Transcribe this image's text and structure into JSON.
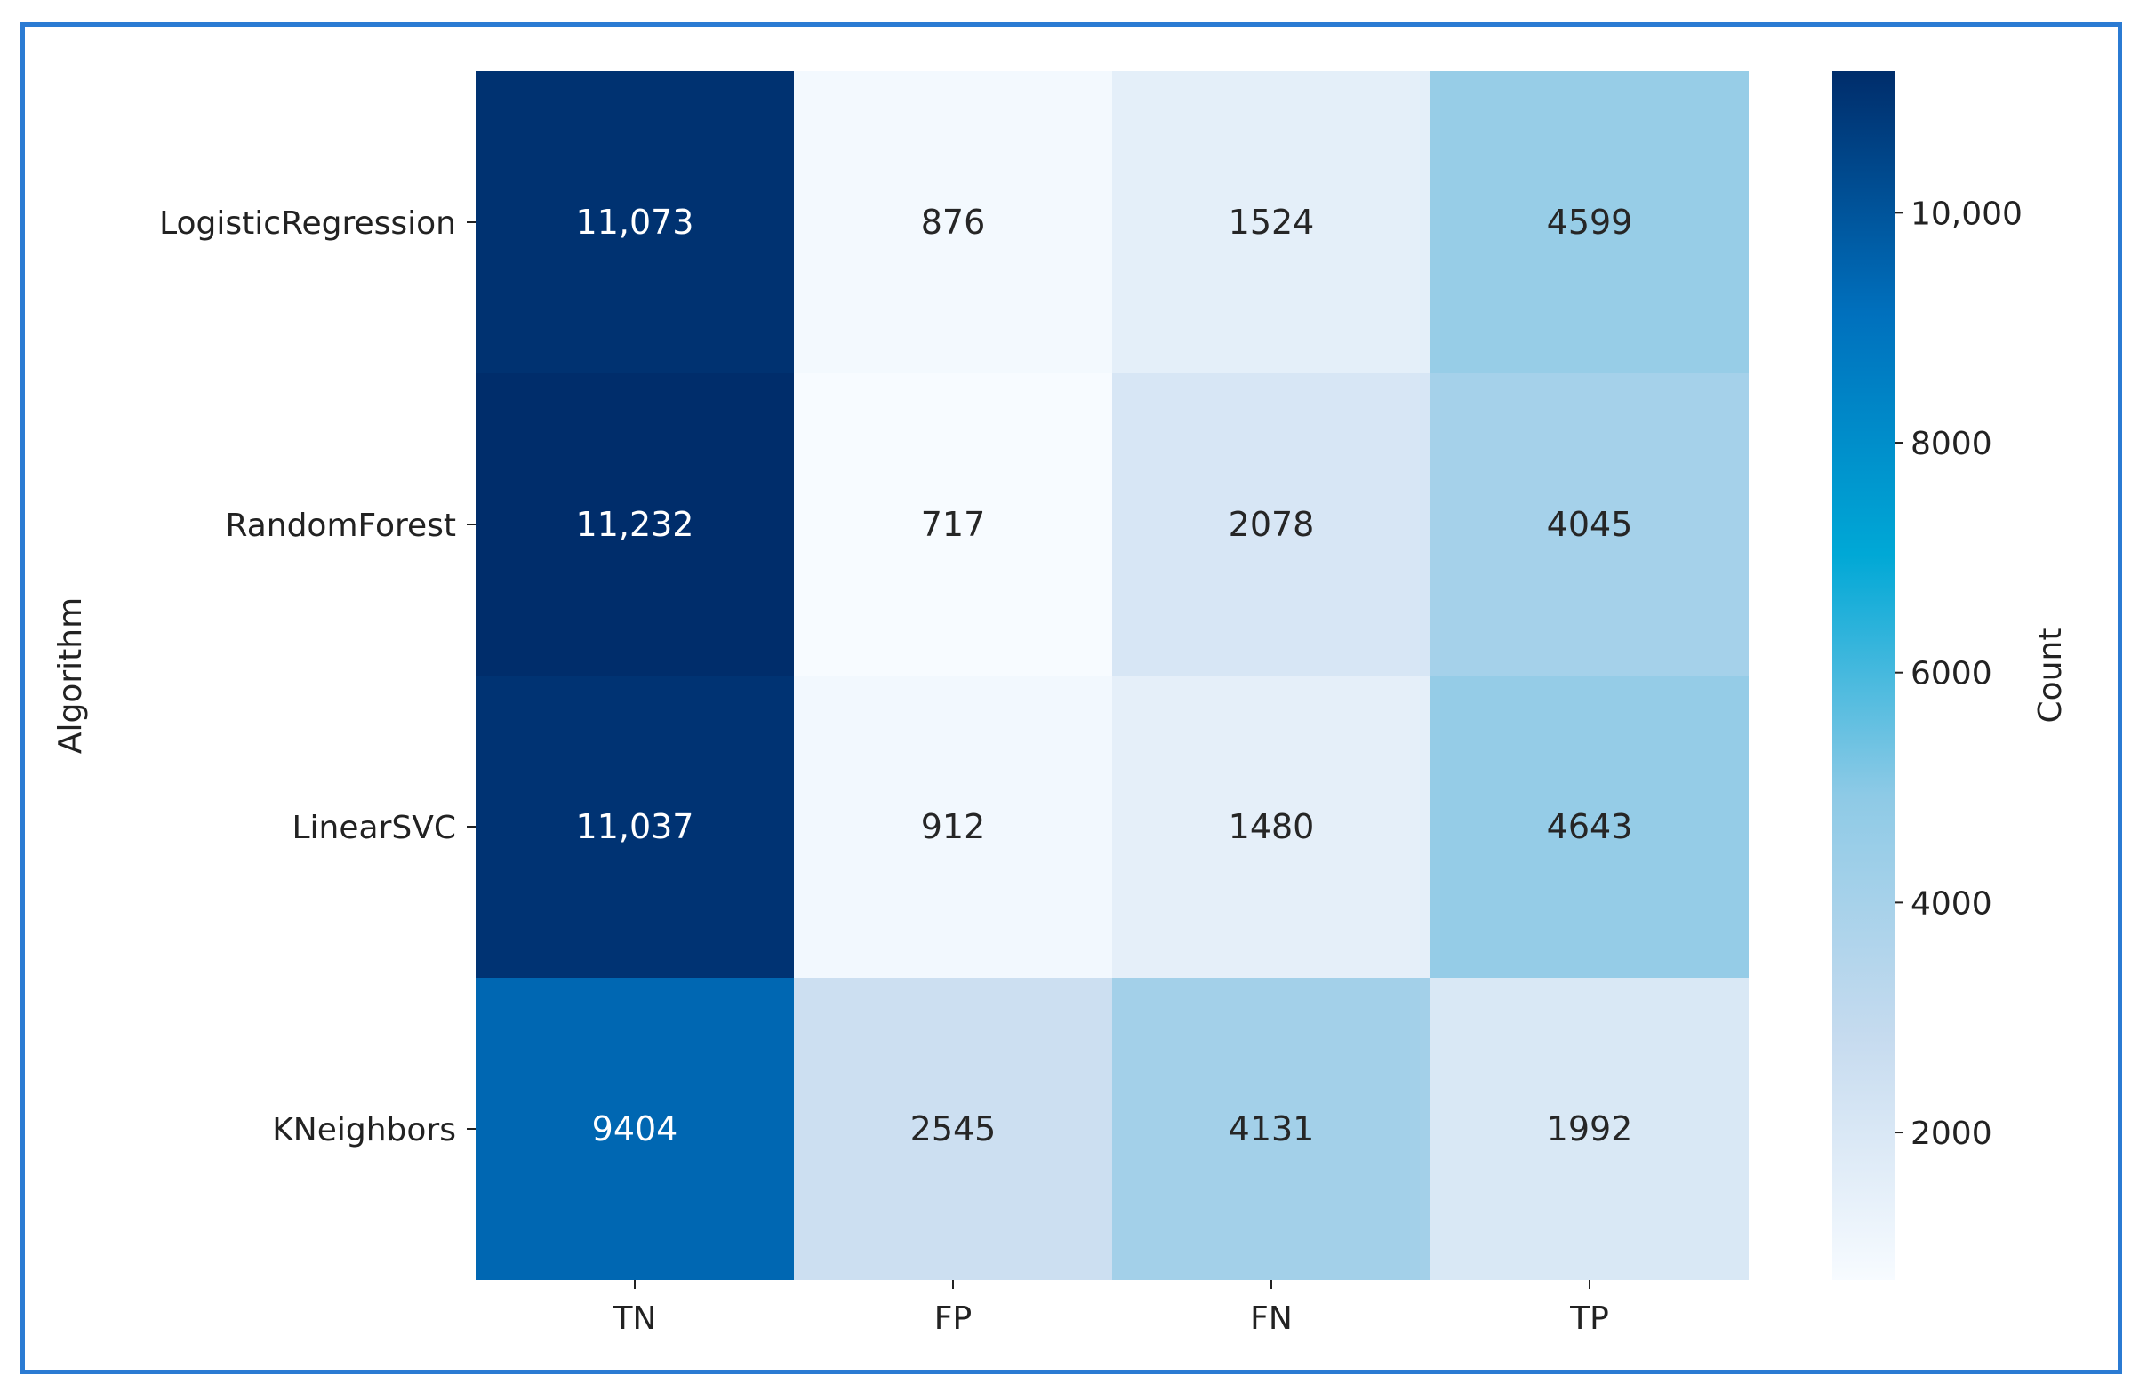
{
  "chart_data": {
    "type": "heatmap",
    "title": "",
    "xlabel": "",
    "ylabel": "Algorithm",
    "colorbar_label": "Count",
    "x_categories": [
      "TN",
      "FP",
      "FN",
      "TP"
    ],
    "y_categories": [
      "LogisticRegression",
      "RandomForest",
      "LinearSVC",
      "KNeighbors"
    ],
    "values": [
      [
        11073,
        876,
        1524,
        4599
      ],
      [
        11232,
        717,
        2078,
        4045
      ],
      [
        11037,
        912,
        1480,
        4643
      ],
      [
        9404,
        2545,
        4131,
        1992
      ]
    ],
    "cell_labels": [
      [
        "11,073",
        "876",
        "1524",
        "4599"
      ],
      [
        "11,232",
        "717",
        "2078",
        "4045"
      ],
      [
        "11,037",
        "912",
        "1480",
        "4643"
      ],
      [
        "9404",
        "2545",
        "4131",
        "1992"
      ]
    ],
    "colorbar_range": [
      717,
      11232
    ],
    "colorbar_ticks": [
      {
        "value": 2000,
        "label": "2000"
      },
      {
        "value": 4000,
        "label": "4000"
      },
      {
        "value": 6000,
        "label": "6000"
      },
      {
        "value": 8000,
        "label": "8000"
      },
      {
        "value": 10000,
        "label": "10,000"
      }
    ],
    "colormap": [
      "#f7fbff",
      "#c6dbef",
      "#8ecae6",
      "#00a8d6",
      "#0070bd",
      "#002d6b"
    ],
    "frame_color": "#2b7bd3"
  }
}
